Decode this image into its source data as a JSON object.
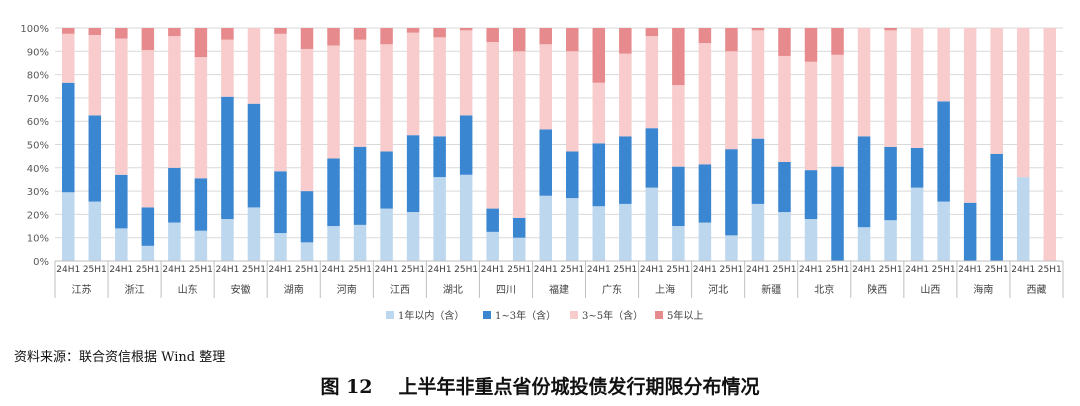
{
  "chart_data": {
    "type": "bar",
    "stacked": true,
    "ylim": [
      0,
      100
    ],
    "yticks": [
      "0%",
      "10%",
      "20%",
      "30%",
      "40%",
      "50%",
      "60%",
      "70%",
      "80%",
      "90%",
      "100%"
    ],
    "grid": true,
    "legend_position": "bottom",
    "provinces": [
      "江苏",
      "浙江",
      "山东",
      "安徽",
      "湖南",
      "河南",
      "江西",
      "湖北",
      "四川",
      "福建",
      "广东",
      "上海",
      "河北",
      "新疆",
      "北京",
      "陕西",
      "山西",
      "海南",
      "西藏"
    ],
    "periods": [
      "24H1",
      "25H1"
    ],
    "categories": [
      "江苏 24H1",
      "江苏 25H1",
      "浙江 24H1",
      "浙江 25H1",
      "山东 24H1",
      "山东 25H1",
      "安徽 24H1",
      "安徽 25H1",
      "湖南 24H1",
      "湖南 25H1",
      "河南 24H1",
      "河南 25H1",
      "江西 24H1",
      "江西 25H1",
      "湖北 24H1",
      "湖北 25H1",
      "四川 24H1",
      "四川 25H1",
      "福建 24H1",
      "福建 25H1",
      "广东 24H1",
      "广东 25H1",
      "上海 24H1",
      "上海 25H1",
      "河北 24H1",
      "河北 25H1",
      "新疆 24H1",
      "新疆 25H1",
      "北京 24H1",
      "北京 25H1",
      "陕西 24H1",
      "陕西 25H1",
      "山西 24H1",
      "山西 25H1",
      "海南 24H1",
      "海南 25H1",
      "西藏 24H1",
      "西藏 25H1"
    ],
    "series": [
      {
        "name": "1年以内（含）",
        "color": "#bdd7ee",
        "values": [
          29.5,
          25.5,
          14,
          6.5,
          16.5,
          13,
          18,
          23,
          12,
          8,
          15,
          15.5,
          22.5,
          21,
          36,
          37,
          12.5,
          10,
          28,
          27,
          23.5,
          24.5,
          31.5,
          15,
          16.5,
          11,
          24.5,
          21,
          18,
          0,
          14.5,
          17.5,
          31.5,
          25.5,
          0,
          0,
          36,
          0
        ]
      },
      {
        "name": "1~3年（含）",
        "color": "#3a86d1",
        "values": [
          47,
          37,
          23,
          16.5,
          23.5,
          22.5,
          52.5,
          44.5,
          26.5,
          22,
          29,
          33.5,
          24.5,
          33,
          17.5,
          25.5,
          10,
          8.5,
          28.5,
          20,
          27,
          29,
          25.5,
          25.5,
          25,
          37,
          28,
          21.5,
          21,
          40.5,
          39,
          31.5,
          17,
          43,
          25,
          46,
          0,
          0
        ]
      },
      {
        "name": "3~5年（含）",
        "color": "#f8cccc",
        "values": [
          21,
          34.5,
          58.5,
          67.5,
          56.5,
          52,
          24.5,
          32.5,
          59,
          61,
          48.5,
          46,
          46,
          44,
          42.5,
          36.5,
          71.5,
          71.5,
          36.5,
          43,
          26,
          35.5,
          39.5,
          35,
          52,
          42,
          46.5,
          45.5,
          46.5,
          48,
          46.5,
          50,
          51.5,
          31.5,
          75,
          54,
          64,
          100
        ]
      },
      {
        "name": "5年以上",
        "color": "#e68a8d",
        "values": [
          2.5,
          3,
          4.5,
          9.5,
          3.5,
          12.5,
          5,
          0,
          2.5,
          9,
          7.5,
          5,
          7,
          2,
          4,
          1,
          6,
          10,
          7,
          10,
          23.5,
          11,
          3.5,
          24.5,
          6.5,
          10,
          1,
          12,
          14.5,
          11.5,
          0,
          1,
          0,
          0,
          0,
          0,
          0,
          0
        ]
      }
    ]
  },
  "source": "资料来源：联合资信根据 Wind 整理",
  "caption": {
    "number": "图 12",
    "title": "上半年非重点省份城投债发行期限分布情况"
  }
}
